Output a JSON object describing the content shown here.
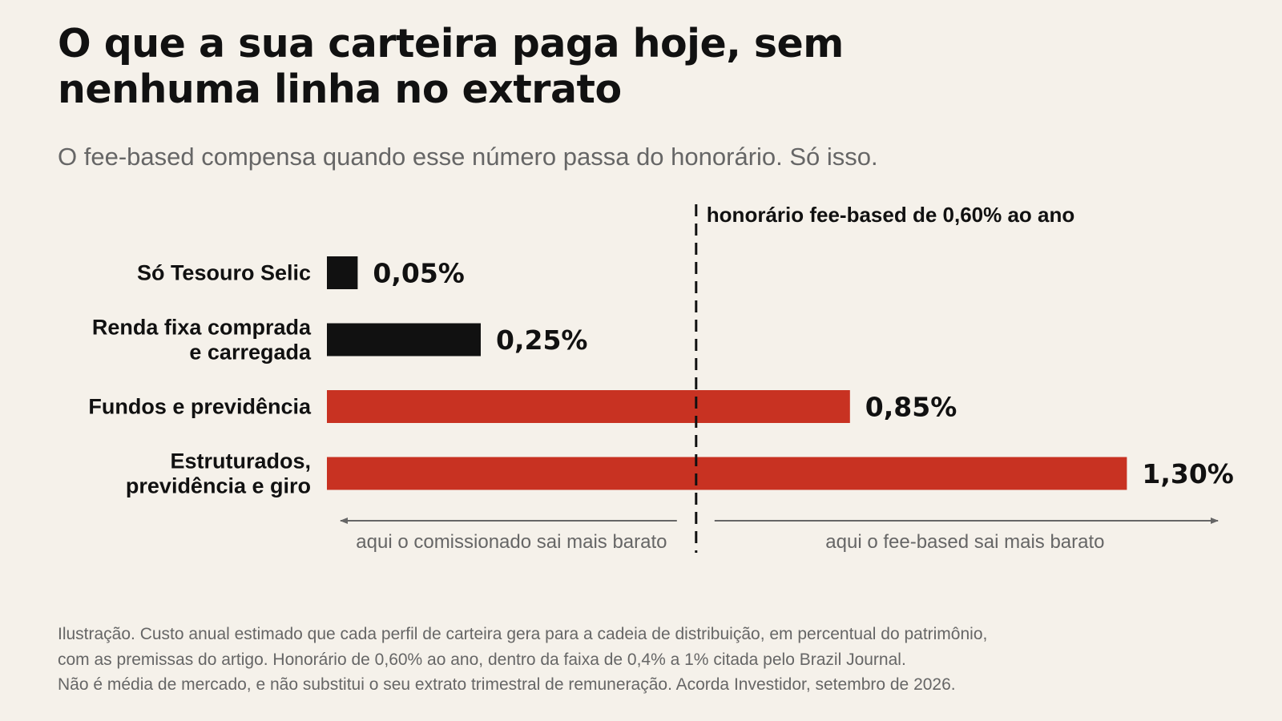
{
  "title": "O que a sua carteira paga hoje, sem nenhuma linha no extrato",
  "subtitle": "O fee-based compensa quando esse número passa do honorário. Só isso.",
  "chart_data": {
    "type": "bar",
    "orientation": "horizontal",
    "categories": [
      [
        "Só Tesouro Selic"
      ],
      [
        "Renda fixa comprada",
        "e carregada"
      ],
      [
        "Fundos e previdência"
      ],
      [
        "Estruturados,",
        "previdência e giro"
      ]
    ],
    "values": [
      0.05,
      0.25,
      0.85,
      1.3
    ],
    "value_labels": [
      "0,05%",
      "0,25%",
      "0,85%",
      "1,30%"
    ],
    "bar_colors": [
      "#111111",
      "#111111",
      "#c83222",
      "#c83222"
    ],
    "xlim": [
      0,
      1.5
    ],
    "reference_line": {
      "value": 0.6,
      "label": "honorário fee-based de 0,60% ao ano"
    },
    "annotations": {
      "left": "aqui o comissionado sai mais barato",
      "right": "aqui o fee-based sai mais barato"
    },
    "grid": false,
    "legend": "none"
  },
  "colors": {
    "background": "#f5f1ea",
    "text": "#111111",
    "muted": "#666666",
    "below_threshold": "#111111",
    "above_threshold": "#c83222"
  },
  "footnote": [
    "Ilustração. Custo anual estimado que cada perfil de carteira gera para a cadeia de distribuição, em percentual do patrimônio,",
    "com as premissas do artigo. Honorário de 0,60% ao ano, dentro da faixa de 0,4% a 1% citada pelo Brazil Journal.",
    "Não é média de mercado, e não substitui o seu extrato trimestral de remuneração. Acorda Investidor, setembro de 2026."
  ]
}
